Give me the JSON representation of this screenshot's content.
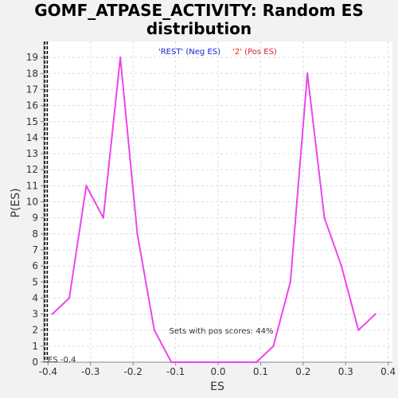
{
  "chart_data": {
    "type": "line",
    "title_line1": "GOMF_ATPASE_ACTIVITY: Random ES",
    "title_line2": "distribution",
    "xlabel": "ES",
    "ylabel": "P(ES)",
    "xlim": [
      -0.41,
      0.41
    ],
    "ylim": [
      0,
      20
    ],
    "x_ticks": [
      "-0.4",
      "-0.3",
      "-0.2",
      "-0.1",
      "0.0",
      "0.1",
      "0.2",
      "0.3",
      "0.4"
    ],
    "x_tick_values": [
      -0.4,
      -0.3,
      -0.2,
      -0.1,
      0.0,
      0.1,
      0.2,
      0.3,
      0.4
    ],
    "y_ticks": [
      "0",
      "1",
      "2",
      "3",
      "4",
      "5",
      "6",
      "7",
      "8",
      "9",
      "10",
      "11",
      "12",
      "13",
      "14",
      "15",
      "16",
      "17",
      "18",
      "19"
    ],
    "y_tick_values": [
      0,
      1,
      2,
      3,
      4,
      5,
      6,
      7,
      8,
      9,
      10,
      11,
      12,
      13,
      14,
      15,
      16,
      17,
      18,
      19
    ],
    "grid": true,
    "legend": [
      {
        "name": "'REST' (Neg ES)",
        "color": "#2222cc"
      },
      {
        "name": "'2' (Pos ES)",
        "color": "#dd2222"
      }
    ],
    "series": [
      {
        "color": "#ee44ee",
        "x": [
          -0.39,
          -0.35,
          -0.31,
          -0.27,
          -0.23,
          -0.19,
          -0.15,
          -0.11,
          -0.07,
          -0.03,
          0.01,
          0.05,
          0.09,
          0.13,
          0.17,
          0.21,
          0.25,
          0.29,
          0.33,
          0.37
        ],
        "y": [
          3,
          4,
          11,
          9,
          19,
          8,
          2,
          0,
          0,
          0,
          0,
          0,
          0,
          1,
          5,
          18,
          9,
          6,
          2,
          3
        ]
      }
    ],
    "es_marker": {
      "x": -0.4,
      "label": "ES -0.4"
    },
    "annotation": "Sets with pos scores: 44%"
  }
}
